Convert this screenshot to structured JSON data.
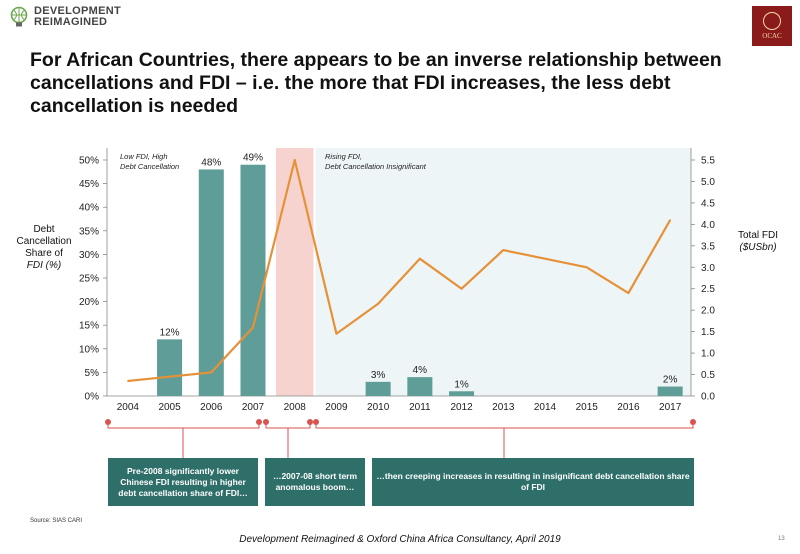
{
  "header": {
    "logo_text_1": "DEVELOPMENT",
    "logo_text_2": "REIMAGINED",
    "partner_logo_text": "OCAC"
  },
  "title": "For African Countries, there appears to be an inverse relationship between cancellations and FDI – i.e. the more that FDI increases, the less debt cancellation is needed",
  "left_axis_label": {
    "line1": "Debt",
    "line2": "Cancellation",
    "line3": "Share of",
    "line4": "FDI (%)"
  },
  "right_axis_label": {
    "line1": "Total FDI",
    "line2": "($USbn)"
  },
  "regions": {
    "low": {
      "line1": "Low FDI, High",
      "line2": "Debt Cancellation"
    },
    "rising": {
      "line1": "Rising FDI,",
      "line2": "Debt Cancellation Insignificant"
    }
  },
  "callouts": [
    "Pre-2008 significantly lower Chinese FDI resulting in higher debt cancellation share of FDI…",
    "…2007-08 short term anomalous boom…",
    "…then creeping increases in resulting in insignificant debt cancellation share of FDI"
  ],
  "source": "Source: SIAS CARI",
  "footer": "Development Reimagined & Oxford China Africa Consultancy, April 2019",
  "page_number": "13",
  "colors": {
    "bar": "#5f9e98",
    "line": "#e69138",
    "highlight": "#f6d3ce",
    "background_panel": "#eef5f7",
    "callout": "#2f6f6a",
    "marker": "#d9534f"
  },
  "chart_data": {
    "type": "bar",
    "categories": [
      "2004",
      "2005",
      "2006",
      "2007",
      "2008",
      "2009",
      "2010",
      "2011",
      "2012",
      "2013",
      "2014",
      "2015",
      "2016",
      "2017"
    ],
    "series": [
      {
        "axis": "left",
        "type": "bar",
        "values": [
          0,
          12,
          48,
          49,
          0,
          0,
          3,
          4,
          1,
          0,
          0,
          0,
          0,
          2
        ],
        "labels": [
          "",
          "12%",
          "48%",
          "49%",
          "",
          "",
          "3%",
          "4%",
          "1%",
          "",
          "",
          "",
          "",
          "2%"
        ]
      },
      {
        "axis": "right",
        "type": "line",
        "values": [
          0.35,
          0.45,
          0.55,
          1.6,
          5.5,
          1.45,
          2.15,
          3.2,
          2.5,
          3.4,
          3.2,
          3.0,
          2.4,
          4.1
        ]
      }
    ],
    "y_left": {
      "ylim": [
        0,
        50
      ],
      "ticks": [
        "0%",
        "5%",
        "10%",
        "15%",
        "20%",
        "25%",
        "30%",
        "35%",
        "40%",
        "45%",
        "50%"
      ]
    },
    "y_right": {
      "ylim": [
        0,
        5.5
      ],
      "ticks": [
        "0.0",
        "0.5",
        "1.0",
        "1.5",
        "2.0",
        "2.5",
        "3.0",
        "3.5",
        "4.0",
        "4.5",
        "5.0",
        "5.5"
      ]
    }
  }
}
